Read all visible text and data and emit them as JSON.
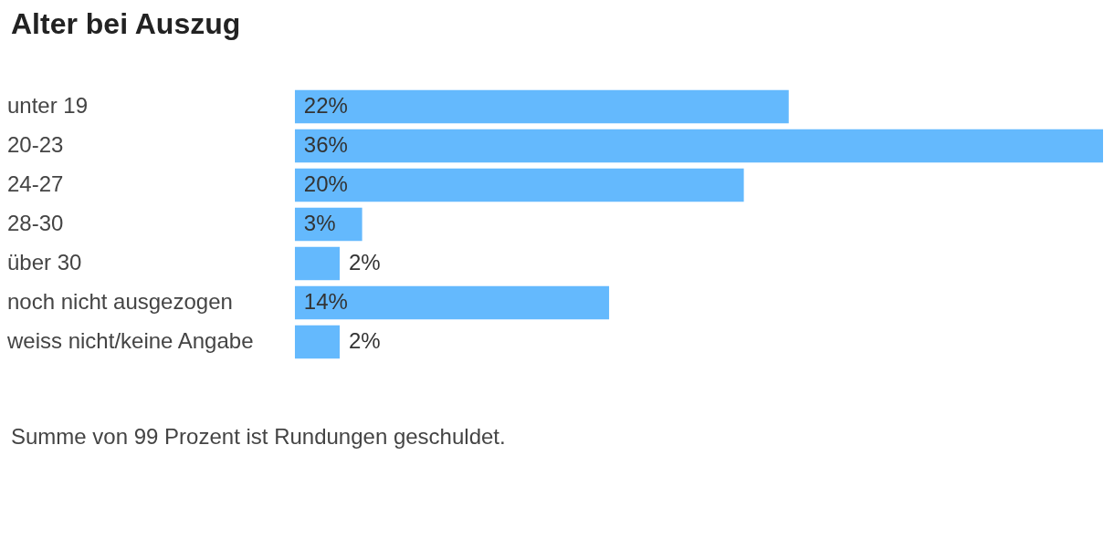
{
  "chart_data": {
    "type": "bar",
    "orientation": "horizontal",
    "title": "Alter bei Auszug",
    "categories": [
      "unter 19",
      "20-23",
      "24-27",
      "28-30",
      "über 30",
      "noch nicht ausgezogen",
      "weiss nicht/keine Angabe"
    ],
    "values": [
      22,
      36,
      20,
      3,
      2,
      14,
      2
    ],
    "value_labels": [
      "22%",
      "36%",
      "20%",
      "3%",
      "2%",
      "14%",
      "2%"
    ],
    "color": "#64b9fd",
    "annotations": [
      "Summe von 99 Prozent ist Rundungen geschuldet."
    ]
  }
}
